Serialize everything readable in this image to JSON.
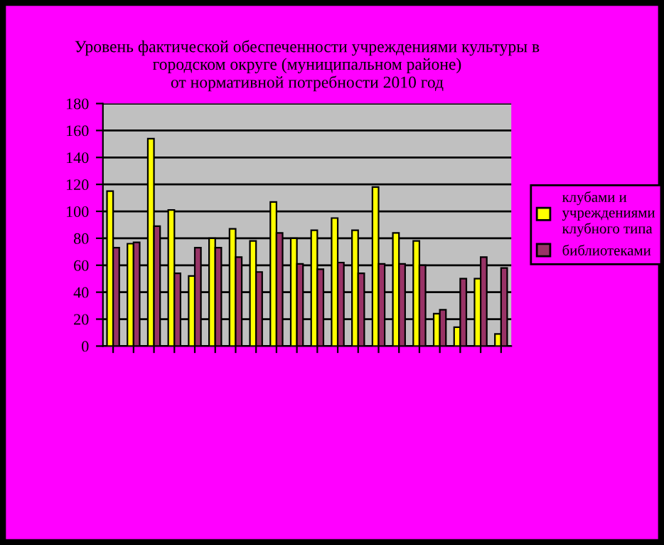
{
  "chart_data": {
    "type": "bar",
    "title": "Уровень фактической обеспеченности учреждениями культуры в\nгородском округе (муниципальном районе)\nот нормативной потребности 2010 год",
    "categories": [
      null,
      null,
      null,
      null,
      null,
      null,
      null,
      null,
      null,
      null,
      null,
      null,
      null,
      null,
      null,
      null,
      null,
      null,
      null,
      null
    ],
    "series": [
      {
        "name": "клубами и учреждениями клубного типа",
        "color": "#ffff00",
        "values": [
          115,
          76,
          154,
          101,
          52,
          80,
          87,
          78,
          107,
          80,
          86,
          95,
          86,
          118,
          84,
          78,
          24,
          14,
          50,
          9
        ]
      },
      {
        "name": "библиотеками",
        "color": "#993366",
        "values": [
          73,
          77,
          89,
          54,
          73,
          73,
          66,
          55,
          84,
          61,
          57,
          62,
          54,
          61,
          61,
          60,
          27,
          50,
          66,
          58
        ]
      }
    ],
    "ylim": [
      0,
      180
    ],
    "yticks": [
      0,
      20,
      40,
      60,
      80,
      100,
      120,
      140,
      160,
      180
    ],
    "grid": "y",
    "legend": "right"
  }
}
